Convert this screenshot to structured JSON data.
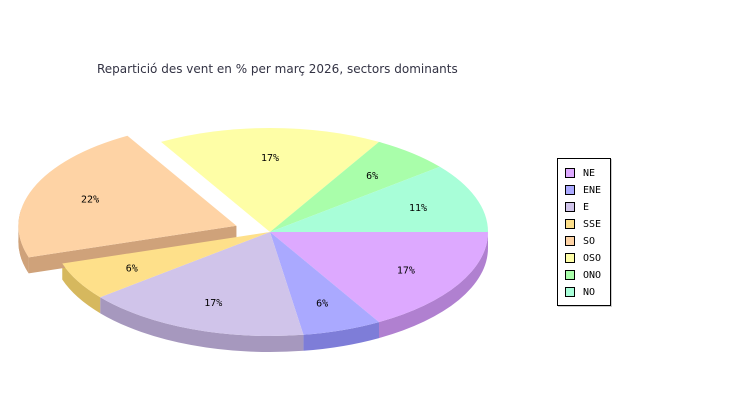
{
  "chart_data": {
    "type": "pie",
    "title": "Repartició des vent en % per març 2026, sectors dominants",
    "slices": [
      {
        "name": "NE",
        "value": 17,
        "label": "17%",
        "color": "#DDA9FF",
        "side": "#B080D0"
      },
      {
        "name": "ENE",
        "value": 6,
        "label": "6%",
        "color": "#AAA9FF",
        "side": "#7E7DD8"
      },
      {
        "name": "E",
        "value": 17,
        "label": "17%",
        "color": "#D0C4EA",
        "side": "#A698BE"
      },
      {
        "name": "SSE",
        "value": 6,
        "label": "6%",
        "color": "#FEE08A",
        "side": "#D6B85E"
      },
      {
        "name": "SO",
        "value": 22,
        "label": "22%",
        "color": "#FED3A5",
        "side": "#CFA27A",
        "exploded": true
      },
      {
        "name": "OSO",
        "value": 17,
        "label": "17%",
        "color": "#FEFEA6",
        "side": "#CFCF78"
      },
      {
        "name": "ONO",
        "value": 6,
        "label": "6%",
        "color": "#A9FEAA",
        "side": "#7ECF7F"
      },
      {
        "name": "NO",
        "value": 11,
        "label": "11%",
        "color": "#A8FED8",
        "side": "#7CD0AA"
      }
    ],
    "legend": {
      "placement": "right",
      "items": [
        "NE",
        "ENE",
        "E",
        "SSE",
        "SO",
        "OSO",
        "ONO",
        "NO"
      ]
    }
  }
}
